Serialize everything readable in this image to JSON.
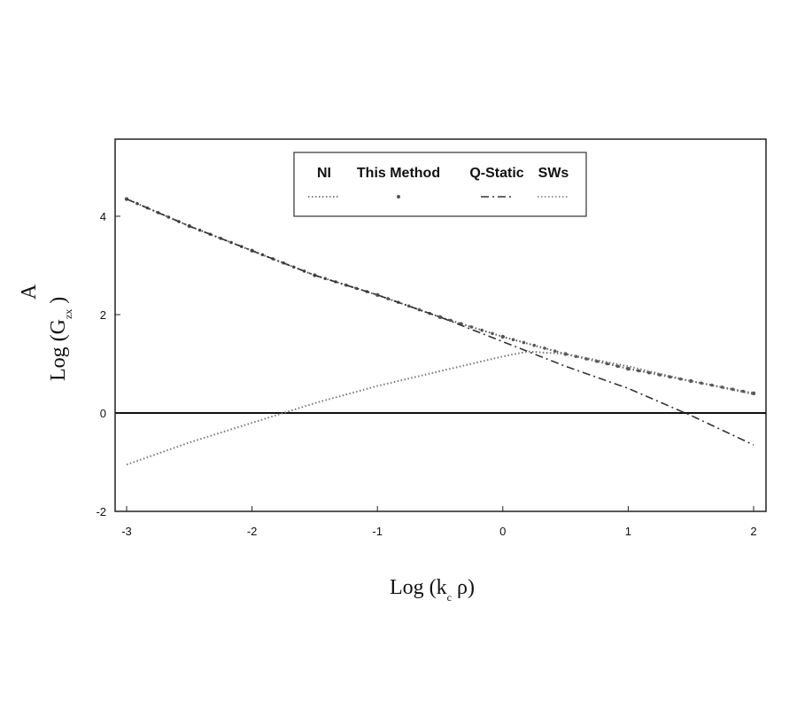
{
  "chart_data": {
    "type": "line",
    "title": "",
    "xlabel": {
      "main": "Log (k",
      "sub": "c",
      "tail": " ρ)"
    },
    "ylabel": {
      "main": "Log (G",
      "sup": "A",
      "sub": "zx",
      "tail": " )"
    },
    "xlim": [
      -3,
      2
    ],
    "ylim": [
      -2,
      5.5
    ],
    "xticks": [
      -3,
      -2,
      -1,
      0,
      1,
      2
    ],
    "xtick_labels": [
      "-3",
      "-2",
      "-1",
      "0",
      "1",
      "2"
    ],
    "yticks": [
      -2,
      0,
      2,
      4
    ],
    "ytick_labels": [
      "-2",
      "0",
      "2",
      "4"
    ],
    "grid": false,
    "legend_position": "top-center",
    "zero_line": true,
    "series": [
      {
        "name": "NI",
        "style": "dotted",
        "color": "#555555",
        "x": [
          -3,
          -2.5,
          -2,
          -1.5,
          -1,
          -0.5,
          0,
          0.5,
          1,
          1.5,
          2
        ],
        "y": [
          4.35,
          3.8,
          3.3,
          2.8,
          2.4,
          1.95,
          1.55,
          1.2,
          0.9,
          0.65,
          0.4
        ]
      },
      {
        "name": "This Method",
        "style": "markers",
        "color": "#555555",
        "x": [
          -3,
          -2.5,
          -2,
          -1.5,
          -1,
          -0.5,
          0,
          0.5,
          1,
          1.5,
          2
        ],
        "y": [
          4.35,
          3.8,
          3.3,
          2.8,
          2.4,
          1.95,
          1.55,
          1.2,
          0.9,
          0.65,
          0.4
        ]
      },
      {
        "name": "Q-Static",
        "style": "dashdot",
        "color": "#333333",
        "x": [
          -3,
          -2.5,
          -2,
          -1.5,
          -1,
          -0.5,
          0,
          0.5,
          1,
          1.5,
          2
        ],
        "y": [
          4.35,
          3.8,
          3.3,
          2.8,
          2.4,
          1.95,
          1.45,
          0.95,
          0.5,
          -0.05,
          -0.65
        ]
      },
      {
        "name": "SWs",
        "style": "dotted",
        "color": "#777777",
        "x": [
          -3,
          -2.5,
          -2,
          -1.5,
          -1,
          -0.5,
          0,
          0.2,
          0.5,
          1,
          1.5,
          2
        ],
        "y": [
          -1.05,
          -0.6,
          -0.2,
          0.2,
          0.55,
          0.85,
          1.15,
          1.25,
          1.2,
          0.95,
          0.65,
          0.38
        ]
      }
    ]
  }
}
